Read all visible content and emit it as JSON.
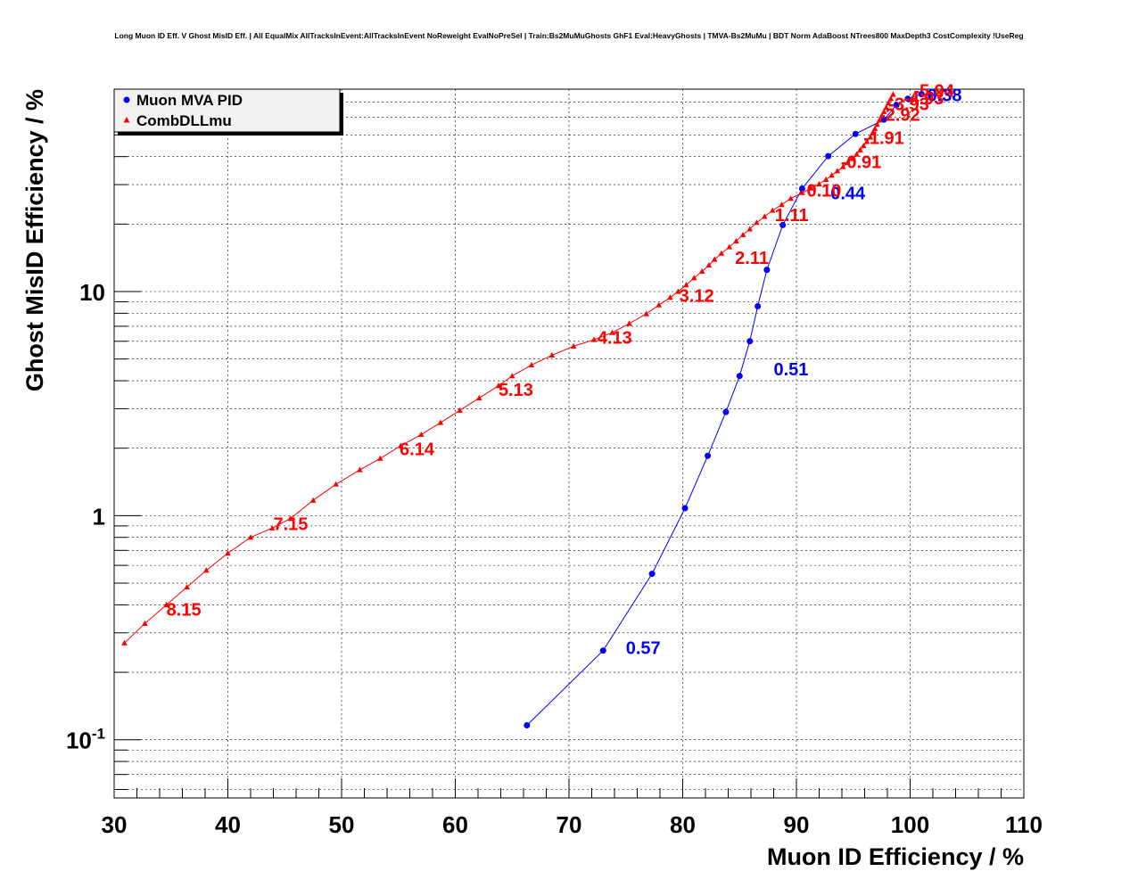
{
  "chart_data": {
    "type": "line",
    "title": "Long Muon ID Eff. V Ghost MisID Eff. | All EqualMix AllTracksInEvent:AllTracksInEvent NoReweight EvalNoPreSel | Train:Bs2MuMuGhosts GhF1 Eval:HeavyGhosts | TMVA-Bs2MuMu | BDT Norm AdaBoost NTrees800 MaxDepth3 CostComplexity !UseReg",
    "xlabel": "Muon ID Efficiency / %",
    "ylabel": "Ghost MisID Efficiency / %",
    "xlim": [
      30,
      110
    ],
    "ylim": [
      0.055,
      80
    ],
    "yscale": "log",
    "grid": true,
    "legend_position": "top-left",
    "x_ticks": [
      "30",
      "40",
      "50",
      "60",
      "70",
      "80",
      "90",
      "100",
      "110"
    ],
    "y_ticks": [
      {
        "value": 0.1,
        "base": "10",
        "exp": "-1"
      },
      {
        "value": 1,
        "base": "1",
        "exp": ""
      },
      {
        "value": 10,
        "base": "10",
        "exp": ""
      }
    ],
    "series": [
      {
        "name": "Muon MVA PID",
        "color": "#0000ff",
        "marker": "circle",
        "points": [
          [
            66.3,
            0.116
          ],
          [
            73.0,
            0.25
          ],
          [
            77.3,
            0.55
          ],
          [
            80.2,
            1.08
          ],
          [
            82.2,
            1.85
          ],
          [
            83.8,
            2.9
          ],
          [
            85.0,
            4.2
          ],
          [
            85.9,
            6.0
          ],
          [
            86.6,
            8.6
          ],
          [
            87.4,
            12.5
          ],
          [
            88.8,
            19.8
          ],
          [
            90.5,
            28.8
          ],
          [
            92.8,
            40.2
          ],
          [
            95.2,
            50.5
          ],
          [
            97.7,
            58.5
          ],
          [
            98.8,
            68.0
          ],
          [
            99.8,
            72.5
          ],
          [
            101.0,
            76.0
          ],
          [
            101.8,
            75.5
          ]
        ],
        "labels": [
          {
            "text": "0.57",
            "x": 75.0,
            "y": 0.26
          },
          {
            "text": "0.51",
            "x": 88.0,
            "y": 4.55
          },
          {
            "text": "0.44",
            "x": 93.0,
            "y": 27.8
          },
          {
            "text": "0.38",
            "x": 101.5,
            "y": 76.0
          }
        ]
      },
      {
        "name": "CombDLLmu",
        "color": "#ff0000",
        "marker": "triangle",
        "points": [
          [
            30.9,
            0.27
          ],
          [
            32.7,
            0.33
          ],
          [
            34.6,
            0.4
          ],
          [
            36.4,
            0.48
          ],
          [
            38.1,
            0.57
          ],
          [
            40.0,
            0.68
          ],
          [
            42.0,
            0.8
          ],
          [
            43.9,
            0.88
          ],
          [
            45.5,
            0.97
          ],
          [
            47.5,
            1.17
          ],
          [
            49.5,
            1.38
          ],
          [
            51.6,
            1.6
          ],
          [
            53.4,
            1.8
          ],
          [
            55.2,
            2.05
          ],
          [
            57.0,
            2.3
          ],
          [
            58.7,
            2.6
          ],
          [
            60.4,
            2.95
          ],
          [
            62.1,
            3.35
          ],
          [
            63.8,
            3.8
          ],
          [
            65.0,
            4.2
          ],
          [
            66.7,
            4.7
          ],
          [
            68.5,
            5.2
          ],
          [
            70.4,
            5.7
          ],
          [
            72.2,
            6.1
          ],
          [
            73.8,
            6.55
          ],
          [
            75.3,
            7.2
          ],
          [
            76.8,
            7.95
          ],
          [
            77.9,
            8.7
          ],
          [
            78.9,
            9.4
          ],
          [
            79.6,
            10.0
          ],
          [
            80.3,
            10.7
          ],
          [
            81.0,
            11.5
          ],
          [
            81.7,
            12.3
          ],
          [
            82.3,
            13.1
          ],
          [
            82.8,
            13.9
          ],
          [
            83.4,
            14.8
          ],
          [
            84.1,
            15.8
          ],
          [
            84.7,
            16.8
          ],
          [
            85.3,
            17.9
          ],
          [
            85.9,
            19.0
          ],
          [
            86.5,
            20.3
          ],
          [
            87.2,
            21.6
          ],
          [
            87.9,
            23.0
          ],
          [
            88.7,
            24.4
          ],
          [
            89.5,
            26.0
          ],
          [
            90.5,
            27.6
          ],
          [
            91.3,
            28.9
          ],
          [
            92.0,
            30.2
          ],
          [
            92.6,
            31.6
          ],
          [
            93.1,
            33.0
          ],
          [
            93.6,
            34.5
          ],
          [
            94.1,
            36.0
          ],
          [
            94.5,
            37.6
          ],
          [
            94.9,
            39.2
          ],
          [
            95.3,
            41.0
          ],
          [
            95.6,
            42.8
          ],
          [
            95.9,
            44.7
          ],
          [
            96.2,
            46.7
          ],
          [
            96.5,
            48.8
          ],
          [
            96.7,
            51.0
          ],
          [
            96.9,
            53.3
          ],
          [
            97.1,
            55.7
          ],
          [
            97.3,
            58.2
          ],
          [
            97.5,
            60.8
          ],
          [
            97.7,
            63.5
          ],
          [
            97.9,
            66.4
          ],
          [
            98.1,
            69.4
          ],
          [
            98.3,
            72.5
          ],
          [
            98.5,
            75.8
          ]
        ],
        "labels": [
          {
            "text": "8.15",
            "x": 34.6,
            "y": 0.385
          },
          {
            "text": "7.15",
            "x": 44.0,
            "y": 0.93
          },
          {
            "text": "6.14",
            "x": 55.1,
            "y": 2.0
          },
          {
            "text": "5.13",
            "x": 63.8,
            "y": 3.68
          },
          {
            "text": "4.13",
            "x": 72.5,
            "y": 6.3
          },
          {
            "text": "3.12",
            "x": 79.7,
            "y": 9.7
          },
          {
            "text": "2.11",
            "x": 84.6,
            "y": 14.3
          },
          {
            "text": "1.11",
            "x": 88.1,
            "y": 22.2
          },
          {
            "text": "0.10",
            "x": 90.9,
            "y": 28.5
          },
          {
            "text": "-0.91",
            "x": 93.9,
            "y": 38.2
          },
          {
            "text": "-1.91",
            "x": 95.9,
            "y": 49.0
          },
          {
            "text": "-2.92",
            "x": 97.3,
            "y": 62.3
          },
          {
            "text": "-3.93",
            "x": 98.1,
            "y": 69.5
          },
          {
            "text": "-4.93",
            "x": 99.4,
            "y": 73.6
          },
          {
            "text": "-5.94",
            "x": 100.3,
            "y": 79.6
          }
        ]
      }
    ]
  }
}
